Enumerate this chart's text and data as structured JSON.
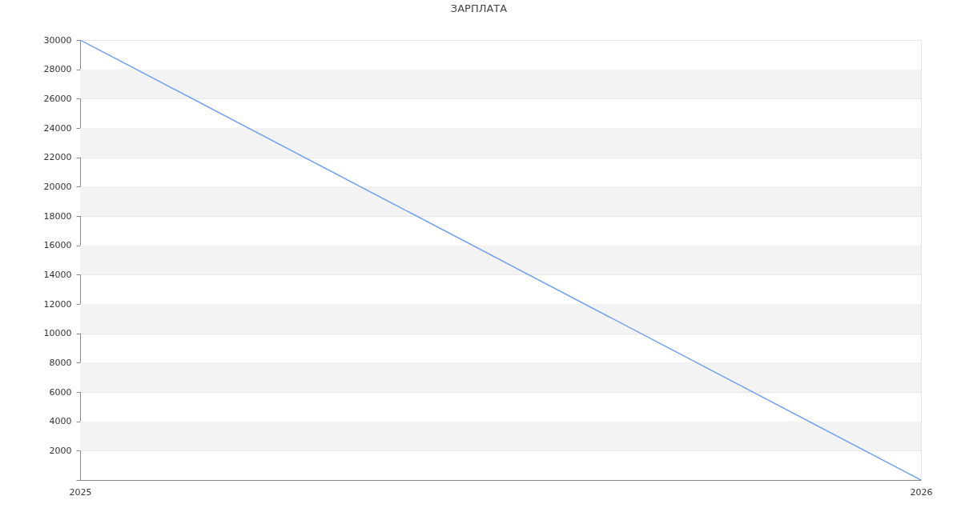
{
  "chart_data": {
    "type": "line",
    "title": "ЗАРПЛАТА",
    "x": [
      "2025",
      "2026"
    ],
    "series": [
      {
        "color": "#6f9ff5",
        "values": [
          30000,
          0
        ]
      }
    ],
    "xlim": [
      "2025",
      "2026"
    ],
    "xticks": [
      "2025",
      "2026"
    ],
    "ylim": [
      0,
      30000
    ],
    "yticks": [
      {
        "value": 0,
        "label": null
      },
      2000,
      4000,
      6000,
      8000,
      10000,
      12000,
      14000,
      16000,
      18000,
      20000,
      22000,
      24000,
      26000,
      28000,
      30000
    ],
    "grid": true,
    "line_style": "solid",
    "bands": [
      {
        "axis": "y",
        "from": 2000,
        "to": 4000,
        "color": "#f3f3f3"
      },
      {
        "axis": "y",
        "from": 6000,
        "to": 8000,
        "color": "#f3f3f3"
      },
      {
        "axis": "y",
        "from": 10000,
        "to": 12000,
        "color": "#f3f3f3"
      },
      {
        "axis": "y",
        "from": 14000,
        "to": 16000,
        "color": "#f3f3f3"
      },
      {
        "axis": "y",
        "from": 18000,
        "to": 20000,
        "color": "#f3f3f3"
      },
      {
        "axis": "y",
        "from": 22000,
        "to": 24000,
        "color": "#f3f3f3"
      },
      {
        "axis": "y",
        "from": 26000,
        "to": 28000,
        "color": "#f3f3f3"
      }
    ]
  }
}
